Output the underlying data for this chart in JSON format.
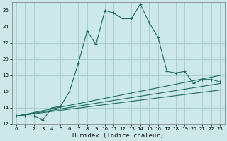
{
  "xlabel": "Humidex (Indice chaleur)",
  "bg_color": "#cce8e8",
  "grid_color": "#aacfcf",
  "line_color": "#1a6b5a",
  "xlim": [
    -0.5,
    23.5
  ],
  "ylim": [
    12,
    27
  ],
  "xticks": [
    0,
    1,
    2,
    3,
    4,
    5,
    6,
    7,
    8,
    9,
    10,
    11,
    12,
    13,
    14,
    15,
    16,
    17,
    18,
    19,
    20,
    21,
    22,
    23
  ],
  "yticks": [
    12,
    14,
    16,
    18,
    20,
    22,
    24,
    26
  ],
  "series1_x": [
    0,
    1,
    2,
    3,
    4,
    5,
    6,
    7,
    8,
    9,
    10,
    11,
    12,
    13,
    14,
    15,
    16,
    17,
    18,
    19,
    20,
    21,
    22,
    23
  ],
  "series1_y": [
    13,
    13,
    13,
    12.5,
    14,
    14.2,
    16,
    19.5,
    23.5,
    21.8,
    26,
    25.7,
    25,
    25,
    26.8,
    24.5,
    22.7,
    18.5,
    18.3,
    18.5,
    17,
    17.5,
    17.5,
    17.2
  ],
  "series2_x": [
    0,
    23
  ],
  "series2_y": [
    13,
    18.0
  ],
  "series3_x": [
    0,
    23
  ],
  "series3_y": [
    13,
    17.0
  ],
  "series4_x": [
    0,
    23
  ],
  "series4_y": [
    13,
    16.2
  ]
}
